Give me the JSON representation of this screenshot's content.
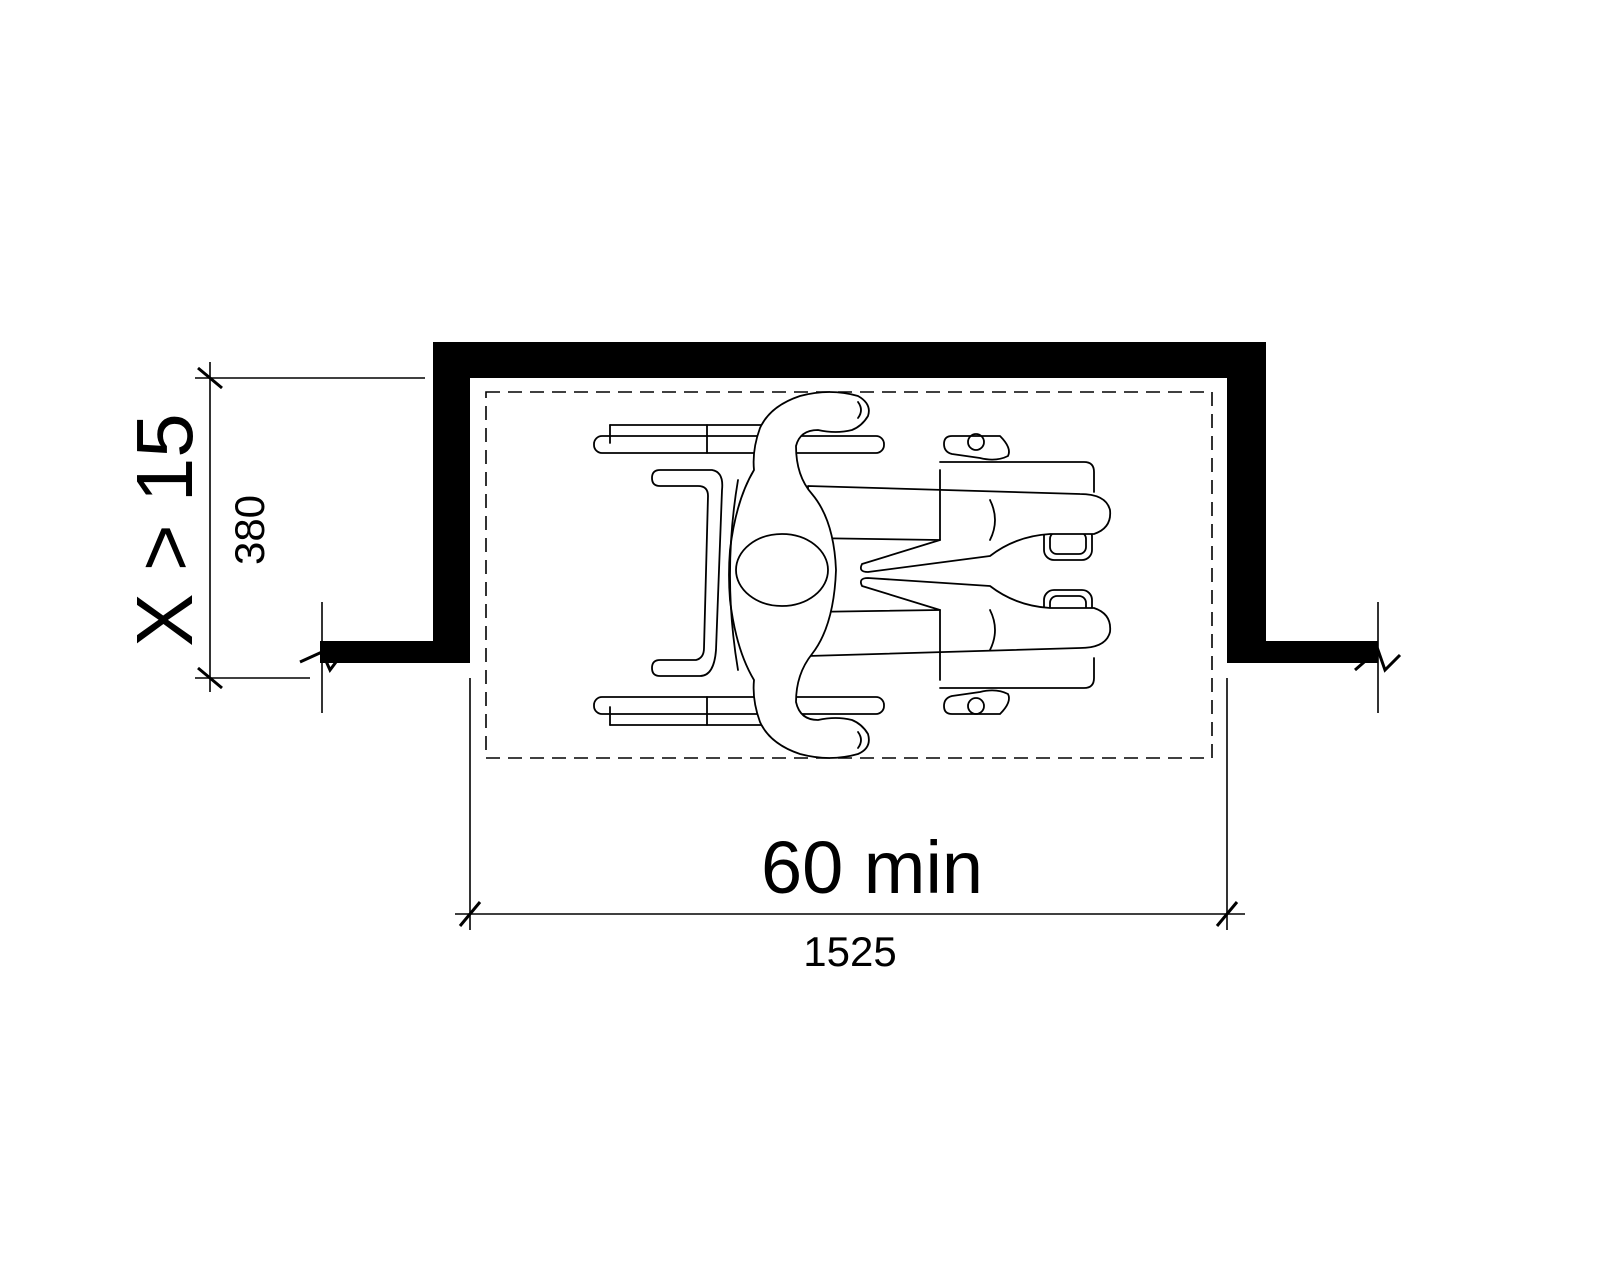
{
  "diagram": {
    "depth_label": "X > 15",
    "depth_metric": "380",
    "width_label": "60 min",
    "width_metric": "1525",
    "colors": {
      "line": "#000000",
      "background": "#ffffff"
    },
    "icons": [
      "wheelchair-user-icon"
    ]
  }
}
